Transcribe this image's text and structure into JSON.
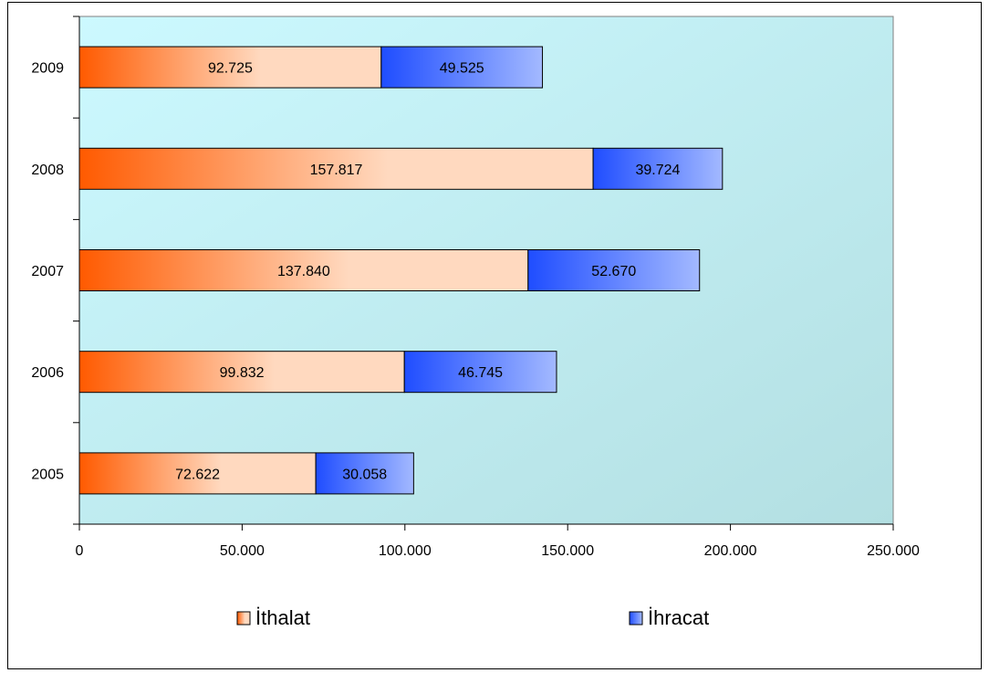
{
  "chart_data": {
    "type": "bar",
    "orientation": "horizontal",
    "stacked": true,
    "categories": [
      "2005",
      "2006",
      "2007",
      "2008",
      "2009"
    ],
    "series": [
      {
        "name": "İthalat",
        "values": [
          72622,
          99832,
          137840,
          157817,
          92725
        ],
        "labels": [
          "72.622",
          "99.832",
          "137.840",
          "157.817",
          "92.725"
        ],
        "color_start": "#ff5a00",
        "color_end": "#ffd9bf"
      },
      {
        "name": "İhracat",
        "values": [
          30058,
          46745,
          52670,
          39724,
          49525
        ],
        "labels": [
          "30.058",
          "46.745",
          "52.670",
          "39.724",
          "49.525"
        ],
        "color_start": "#1f4dff",
        "color_end": "#a3b9ff"
      }
    ],
    "xlim": [
      0,
      250000
    ],
    "x_ticks": [
      0,
      50000,
      100000,
      150000,
      200000,
      250000
    ],
    "x_tick_labels": [
      "0",
      "50.000",
      "100.000",
      "150.000",
      "200.000",
      "250.000"
    ],
    "legend_position": "bottom",
    "grid": false,
    "plot_background": [
      "#ccf9ff",
      "#b3dfe2"
    ]
  }
}
